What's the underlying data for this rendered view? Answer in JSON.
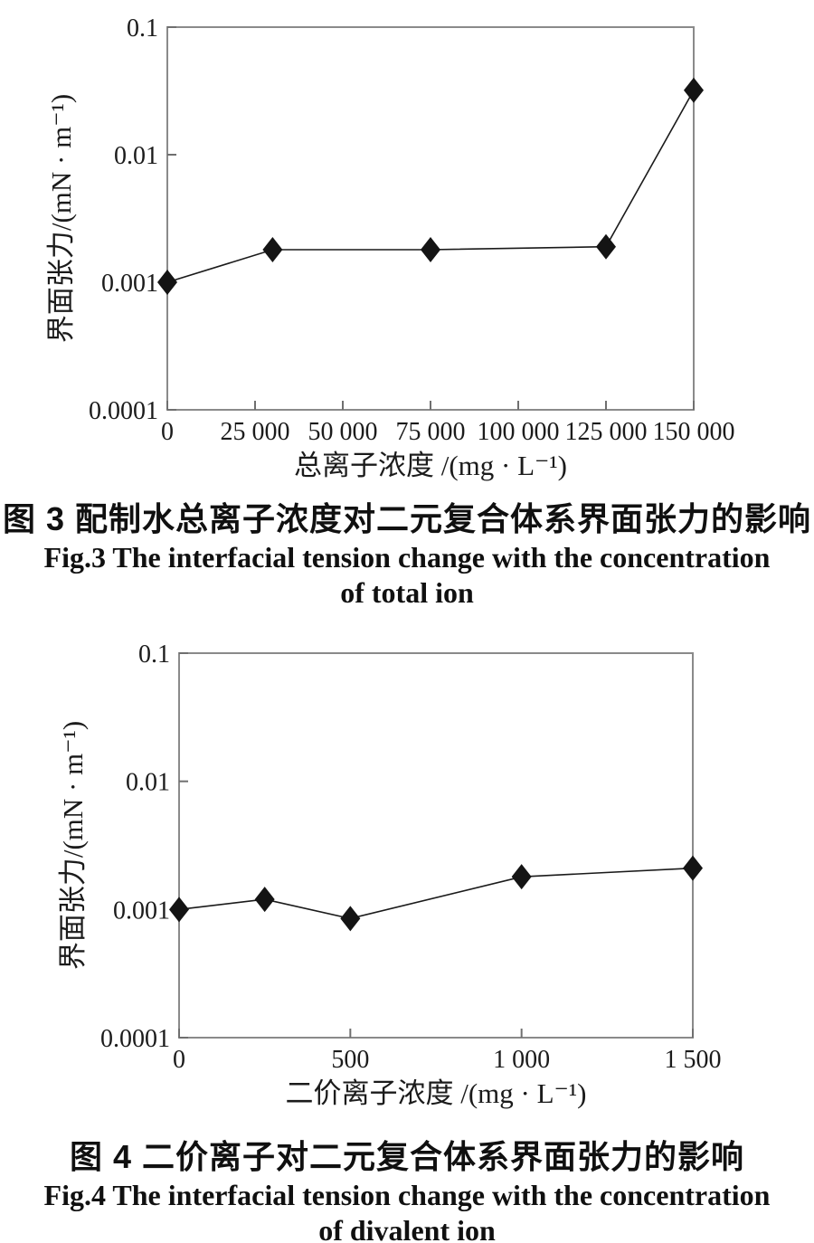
{
  "figures": [
    {
      "caption_cn": "图 3  配制水总离子浓度对二元复合体系界面张力的影响",
      "caption_en_line1": "Fig.3 The interfacial tension change with the concentration",
      "caption_en_line2": "of total ion"
    },
    {
      "caption_cn": "图 4  二价离子对二元复合体系界面张力的影响",
      "caption_en_line1": "Fig.4 The interfacial tension change with the concentration",
      "caption_en_line2": "of divalent ion"
    }
  ],
  "chart_data": [
    {
      "type": "line",
      "title": "",
      "xlabel": "总离子浓度 /(mg · L⁻¹)",
      "ylabel": "界面张力/(mN · m⁻¹)",
      "x": [
        0,
        30000,
        75000,
        125000,
        150000
      ],
      "y": [
        0.001,
        0.0018,
        0.0018,
        0.0019,
        0.032
      ],
      "xlim": [
        0,
        150000
      ],
      "x_ticks": [
        0,
        25000,
        50000,
        75000,
        100000,
        125000,
        150000
      ],
      "x_tick_labels": [
        "0",
        "25 000",
        "50 000",
        "75 000",
        "100 000",
        "125 000",
        "150 000"
      ],
      "y_scale": "log",
      "ylim": [
        0.0001,
        0.1
      ],
      "y_ticks": [
        0.1,
        0.01,
        0.001,
        0.0001
      ],
      "y_tick_labels": [
        "0.1",
        "0.01",
        "0.001",
        "0.0001"
      ],
      "marker": "diamond",
      "marker_color": "#141414",
      "line_color": "#1a1a1a",
      "frame_color": "#8a8a8a",
      "grid": false,
      "legend": null
    },
    {
      "type": "line",
      "title": "",
      "xlabel": "二价离子浓度 /(mg · L⁻¹)",
      "ylabel": "界面张力/(mN · m⁻¹)",
      "x": [
        0,
        250,
        500,
        1000,
        1500
      ],
      "y": [
        0.001,
        0.0012,
        0.00085,
        0.0018,
        0.0021
      ],
      "xlim": [
        0,
        1500
      ],
      "x_ticks": [
        0,
        500,
        1000,
        1500
      ],
      "x_tick_labels": [
        "0",
        "500",
        "1 000",
        "1 500"
      ],
      "y_scale": "log",
      "ylim": [
        0.0001,
        0.1
      ],
      "y_ticks": [
        0.1,
        0.01,
        0.001,
        0.0001
      ],
      "y_tick_labels": [
        "0.1",
        "0.01",
        "0.001",
        "0.0001"
      ],
      "marker": "diamond",
      "marker_color": "#141414",
      "line_color": "#1a1a1a",
      "frame_color": "#8a8a8a",
      "grid": false,
      "legend": null
    }
  ]
}
